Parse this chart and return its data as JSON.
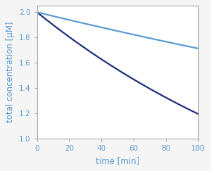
{
  "title": "",
  "xlabel": "time [min]",
  "ylabel": "total concentration [μM]",
  "xlim": [
    0,
    100
  ],
  "ylim": [
    1.0,
    2.05
  ],
  "xticks": [
    0,
    20,
    40,
    60,
    80,
    100
  ],
  "yticks": [
    1.0,
    1.2,
    1.4,
    1.6,
    1.8,
    2.0
  ],
  "C0": 2.0,
  "t_max": 100,
  "k_true": 0.00515,
  "k_apparent": 0.00155,
  "line_true_color": "#1e2d78",
  "line_apparent_color": "#5b9bd5",
  "line_width": 1.6,
  "axis_label_color": "#5b9bd5",
  "tick_label_color": "#5b9bd5",
  "spine_color": "#aaaaaa",
  "background_color": "#f5f5f5",
  "plot_bg_color": "#ffffff",
  "figsize": [
    3.0,
    2.43
  ],
  "dpi": 100
}
